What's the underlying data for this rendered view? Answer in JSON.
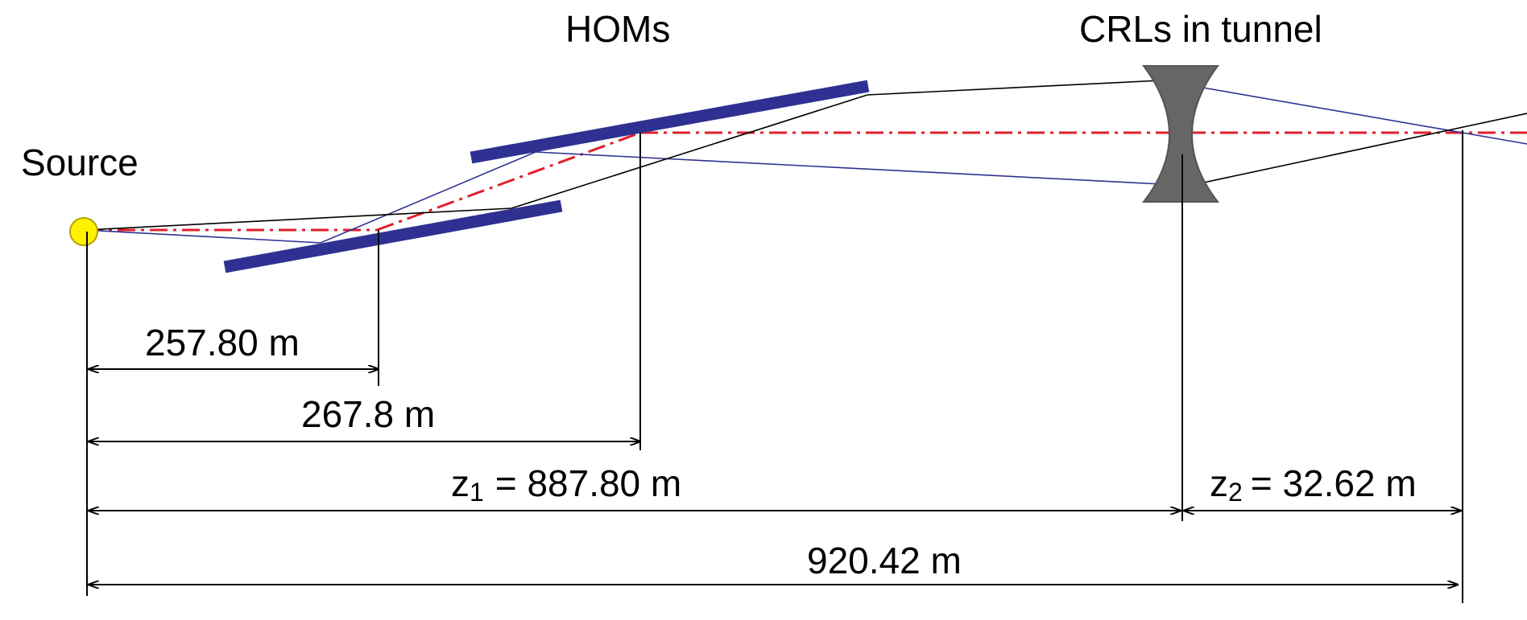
{
  "labels": {
    "source": "Source",
    "homs": "HOMs",
    "crls": "CRLs in tunnel"
  },
  "dimensions": {
    "d1": "257.80 m",
    "d2": "267.8 m",
    "z1_var": "z",
    "z1_sub": "1",
    "z1_value": "=  887.80 m",
    "z2_var": "z",
    "z2_sub": "2",
    "z2_value": "= 32.62 m",
    "total": "920.42 m"
  },
  "colors": {
    "mirror": "#2e3192",
    "beam_axis": "#e0202a",
    "ray_blue": "#2e3192",
    "ray_black": "#000000",
    "lens": "#666666",
    "source_fill": "#fff200",
    "source_stroke": "#b3a000"
  },
  "icons": {
    "source": "source-point-icon",
    "lens": "biconcave-lens-icon",
    "mirror": "mirror-bar-icon"
  }
}
